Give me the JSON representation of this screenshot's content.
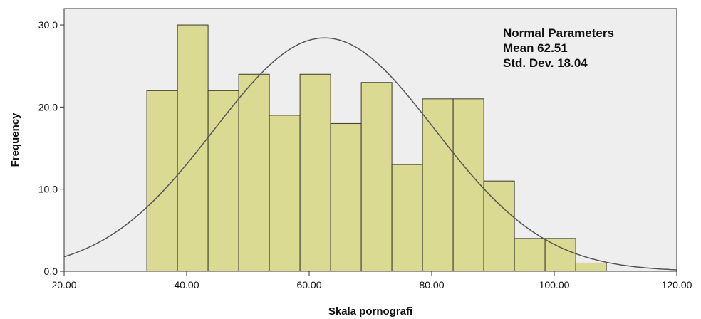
{
  "chart_data": {
    "type": "bar",
    "xlabel": "Skala pornografi",
    "ylabel": "Frequency",
    "xlim": [
      20,
      120
    ],
    "ylim": [
      0,
      32
    ],
    "x_ticks": [
      20,
      40,
      60,
      80,
      100,
      120
    ],
    "x_tick_labels": [
      "20.00",
      "40.00",
      "60.00",
      "80.00",
      "100.00",
      "120.00"
    ],
    "y_ticks": [
      0,
      10,
      20,
      30
    ],
    "y_tick_labels": [
      "0.0",
      "10.0",
      "20.0",
      "30.0"
    ],
    "bin_width": 5,
    "bins": [
      {
        "start": 33.5,
        "value": 22
      },
      {
        "start": 38.5,
        "value": 30
      },
      {
        "start": 43.5,
        "value": 22
      },
      {
        "start": 48.5,
        "value": 24
      },
      {
        "start": 53.5,
        "value": 19
      },
      {
        "start": 58.5,
        "value": 24
      },
      {
        "start": 63.5,
        "value": 18
      },
      {
        "start": 68.5,
        "value": 23
      },
      {
        "start": 73.5,
        "value": 13
      },
      {
        "start": 78.5,
        "value": 21
      },
      {
        "start": 83.5,
        "value": 21
      },
      {
        "start": 88.5,
        "value": 11
      },
      {
        "start": 93.5,
        "value": 4
      },
      {
        "start": 98.5,
        "value": 4
      },
      {
        "start": 103.5,
        "value": 1
      }
    ],
    "normal_curve": {
      "mean": 62.51,
      "sd": 18.04,
      "n": 257
    },
    "annotation": [
      "Normal Parameters",
      "Mean 62.51",
      "Std. Dev. 18.04"
    ],
    "grid": false,
    "colors": {
      "bar_fill": "#d6d682",
      "bar_stroke": "#3a3a28",
      "curve": "#555555",
      "plot_bg": "#eeeeee"
    }
  }
}
